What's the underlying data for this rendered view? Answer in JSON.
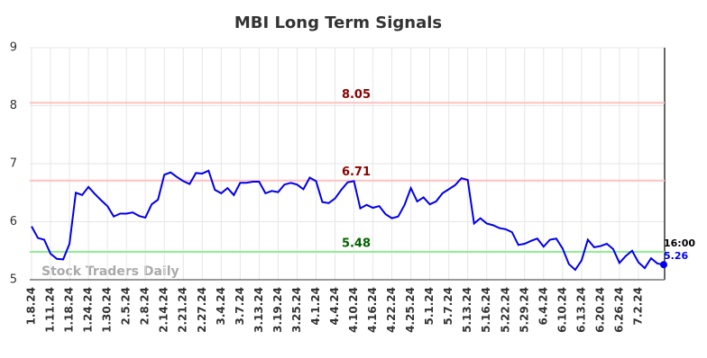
{
  "chart_data": {
    "type": "line",
    "title": "MBI Long Term Signals",
    "watermark": "Stock Traders Daily",
    "time_label": "16:00",
    "categories": [
      "1.8.24",
      null,
      null,
      "1.11.24",
      null,
      null,
      "1.18.24",
      null,
      null,
      "1.24.24",
      null,
      null,
      "1.30.24",
      null,
      null,
      "2.5.24",
      null,
      null,
      "2.8.24",
      null,
      null,
      "2.14.24",
      null,
      null,
      "2.21.24",
      null,
      null,
      "2.27.24",
      null,
      null,
      "3.4.24",
      null,
      null,
      "3.7.24",
      null,
      null,
      "3.13.24",
      null,
      null,
      "3.19.24",
      null,
      null,
      "3.25.24",
      null,
      null,
      "4.1.24",
      null,
      null,
      "4.4.24",
      null,
      null,
      "4.10.24",
      null,
      null,
      "4.16.24",
      null,
      null,
      "4.22.24",
      null,
      null,
      "4.25.24",
      null,
      null,
      "5.1.24",
      null,
      null,
      "5.7.24",
      null,
      null,
      "5.13.24",
      null,
      null,
      "5.16.24",
      null,
      null,
      "5.22.24",
      null,
      null,
      "5.29.24",
      null,
      null,
      "6.4.24",
      null,
      null,
      "6.10.24",
      null,
      null,
      "6.13.24",
      null,
      null,
      "6.20.24",
      null,
      null,
      "6.26.24",
      null,
      null,
      "7.2.24",
      null,
      null,
      null,
      null
    ],
    "series": [
      {
        "name": "MBI",
        "color": "#0000ee",
        "values": [
          5.92,
          5.72,
          5.69,
          5.45,
          5.36,
          5.35,
          5.62,
          6.5,
          6.46,
          6.6,
          6.48,
          6.37,
          6.27,
          6.09,
          6.14,
          6.14,
          6.16,
          6.1,
          6.07,
          6.3,
          6.38,
          6.81,
          6.85,
          6.77,
          6.7,
          6.65,
          6.84,
          6.83,
          6.88,
          6.55,
          6.49,
          6.58,
          6.46,
          6.67,
          6.67,
          6.69,
          6.69,
          6.49,
          6.53,
          6.51,
          6.64,
          6.67,
          6.64,
          6.56,
          6.76,
          6.7,
          6.34,
          6.32,
          6.4,
          6.55,
          6.68,
          6.7,
          6.23,
          6.29,
          6.24,
          6.27,
          6.13,
          6.06,
          6.09,
          6.29,
          6.58,
          6.35,
          6.42,
          6.3,
          6.35,
          6.49,
          6.56,
          6.63,
          6.75,
          6.72,
          5.97,
          6.06,
          5.97,
          5.94,
          5.89,
          5.87,
          5.82,
          5.6,
          5.62,
          5.67,
          5.71,
          5.57,
          5.69,
          5.71,
          5.54,
          5.27,
          5.17,
          5.33,
          5.69,
          5.56,
          5.58,
          5.62,
          5.53,
          5.29,
          5.41,
          5.5,
          5.3,
          5.2,
          5.37,
          5.28,
          5.26
        ]
      }
    ],
    "levels": [
      {
        "value": 8.05,
        "line_color": "#ffc0c0",
        "label_color": "#8b0000"
      },
      {
        "value": 6.71,
        "line_color": "#ffc0c0",
        "label_color": "#8b0000"
      },
      {
        "value": 5.48,
        "line_color": "#90ee90",
        "label_color": "#006400"
      }
    ],
    "ylim": [
      5,
      9
    ],
    "yticks": [
      5,
      6,
      7,
      8,
      9
    ],
    "grid": true
  }
}
